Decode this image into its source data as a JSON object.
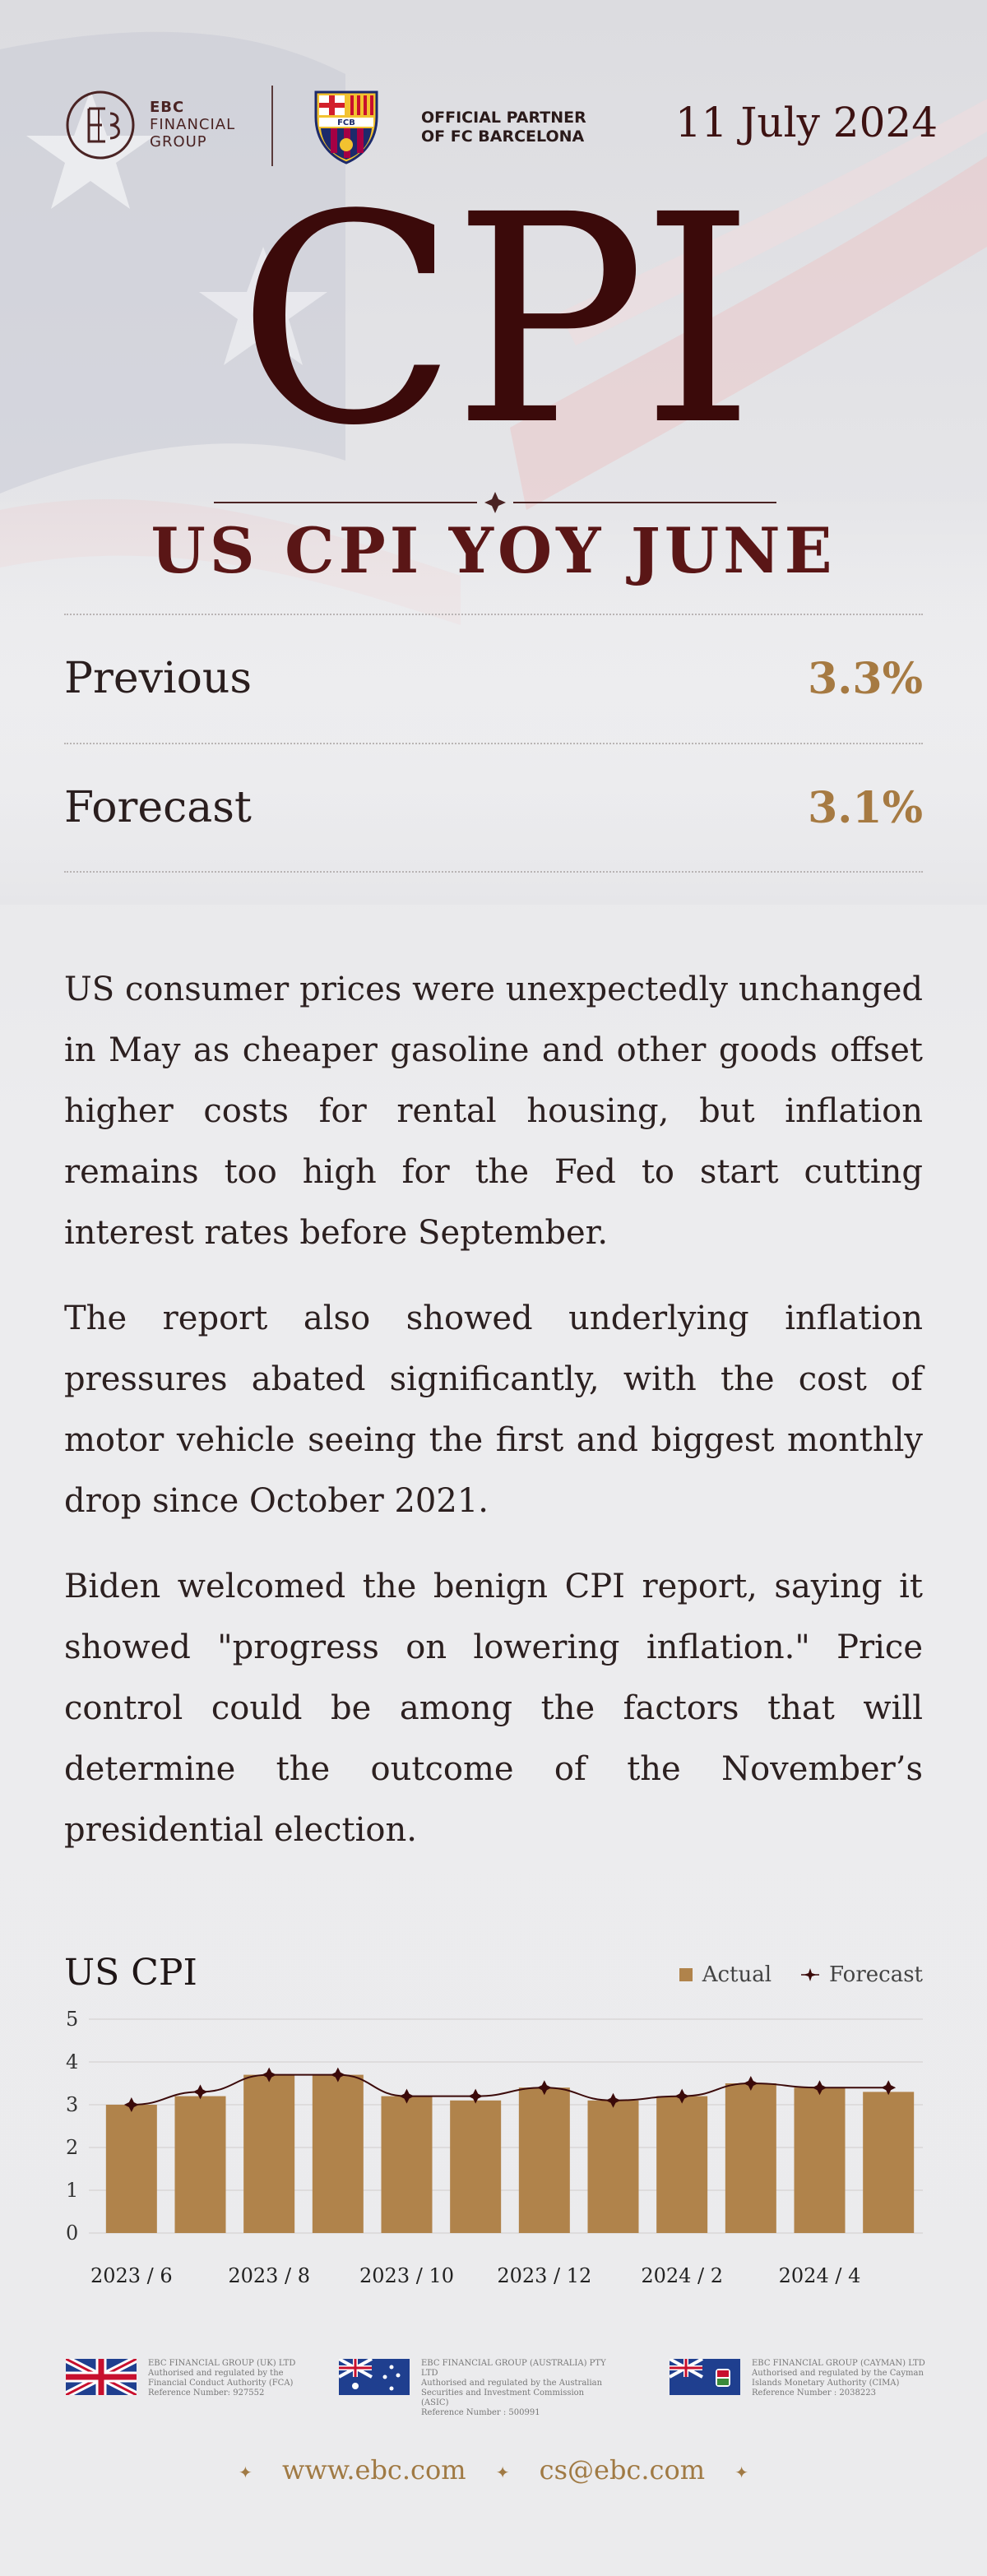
{
  "header": {
    "brand_line1": "EBC",
    "brand_line2": "FINANCIAL",
    "brand_line3": "GROUP",
    "partner_line1": "OFFICIAL PARTNER",
    "partner_line2": "OF FC BARCELONA",
    "date": "11 July 2024"
  },
  "hero": {
    "title": "CPI",
    "subtitle": "US CPI YOY JUNE"
  },
  "stats": [
    {
      "label": "Previous",
      "value": "3.3%"
    },
    {
      "label": "Forecast",
      "value": "3.1%"
    }
  ],
  "paragraphs": [
    "US consumer prices were unexpectedly unchanged in May as cheaper gasoline and other goods offset higher costs for rental housing, but inflation remains too high for the Fed to start cutting interest rates before September.",
    "The report also showed underlying inflation pressures abated significantly, with the cost of motor vehicle seeing the first and biggest monthly drop since October 2021.",
    "Biden welcomed the benign CPI report, saying it showed \"progress on lowering inflation.\" Price control could be among the factors that will determine the outcome of the November’s presidential election."
  ],
  "chart_data": {
    "type": "bar",
    "title": "US CPI",
    "categories": [
      "2023 / 6",
      "2023 / 7",
      "2023 / 8",
      "2023 / 9",
      "2023 / 10",
      "2023 / 11",
      "2023 / 12",
      "2024 / 1",
      "2024 / 2",
      "2024 / 3",
      "2024 / 4",
      "2024 / 5"
    ],
    "x_tick_labels": [
      "2023 / 6",
      "2023 / 8",
      "2023 / 10",
      "2023 / 12",
      "2024 / 2",
      "2024 / 4"
    ],
    "series": [
      {
        "name": "Actual",
        "type": "bar",
        "color": "#b0834b",
        "values": [
          3.0,
          3.2,
          3.7,
          3.7,
          3.2,
          3.1,
          3.4,
          3.1,
          3.2,
          3.5,
          3.4,
          3.3
        ]
      },
      {
        "name": "Forecast",
        "type": "line",
        "color": "#3b0a0a",
        "values": [
          3.0,
          3.3,
          3.7,
          3.7,
          3.2,
          3.2,
          3.4,
          3.1,
          3.2,
          3.5,
          3.4,
          3.4
        ]
      }
    ],
    "ylim": [
      0,
      5
    ],
    "y_ticks": [
      "0",
      "1",
      "2",
      "3",
      "4",
      "5"
    ],
    "legend": "top-right",
    "grid": true
  },
  "regulators": [
    {
      "lines": [
        "EBC FINANCIAL GROUP (UK) LTD",
        "Authorised and regulated by the",
        "Financial Conduct Authority (FCA)",
        "Reference Number: 927552"
      ],
      "flag": "uk-flag"
    },
    {
      "lines": [
        "EBC FINANCIAL GROUP (AUSTRALIA) PTY LTD",
        "Authorised and regulated by the Australian",
        "Securities and Investment Commission (ASIC)",
        "Reference Number : 500991"
      ],
      "flag": "australia-flag"
    },
    {
      "lines": [
        "EBC FINANCIAL GROUP (CAYMAN) LTD",
        "Authorised and regulated by the Cayman",
        "Islands Monetary Authority (CIMA)",
        "Reference Number : 2038223"
      ],
      "flag": "cayman-flag"
    }
  ],
  "contact": {
    "website": "www.ebc.com",
    "email": "cs@ebc.com"
  },
  "colors": {
    "brand_dark": "#3b0a0a",
    "accent_gold": "#a67a42",
    "bar": "#b0834b"
  }
}
